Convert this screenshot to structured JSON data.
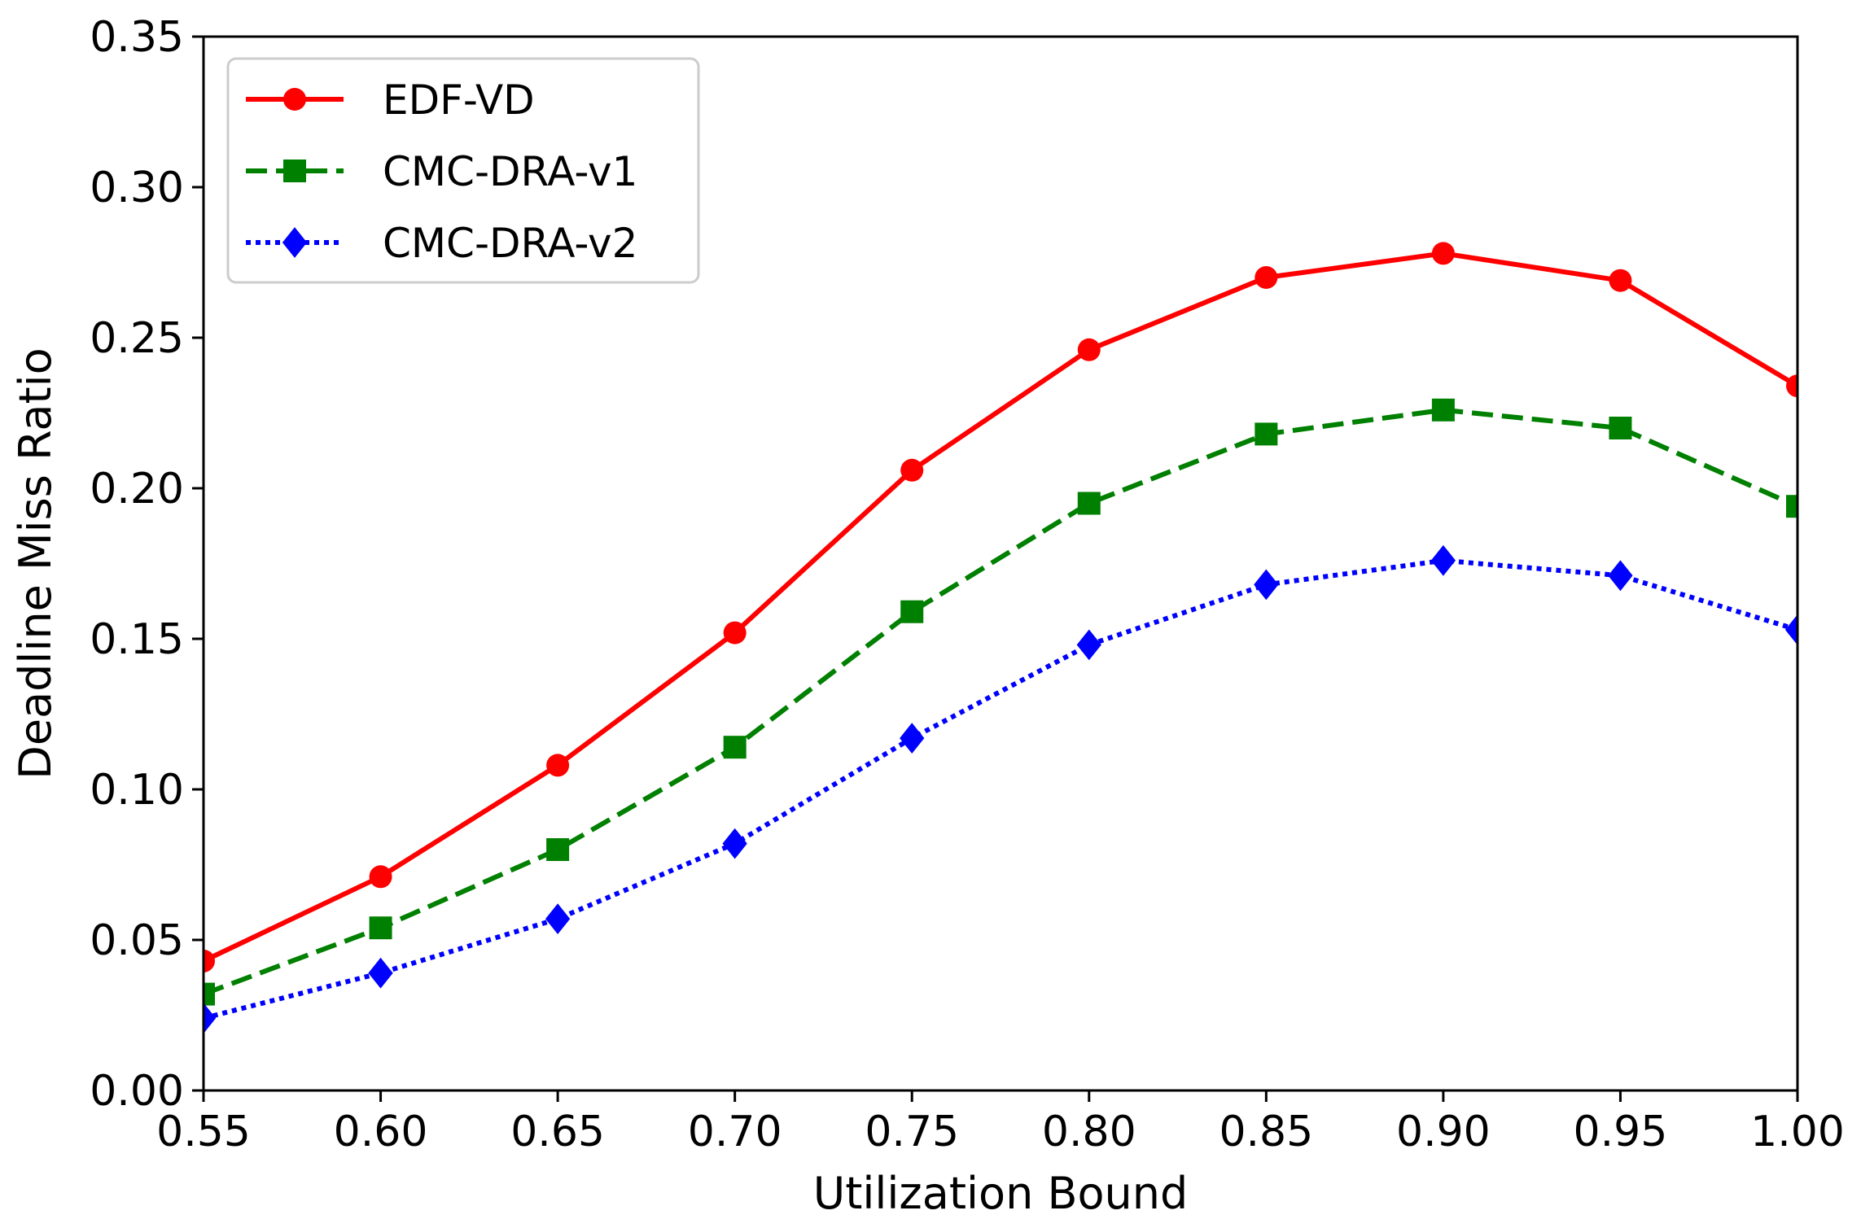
{
  "chart_data": {
    "type": "line",
    "title": "",
    "xlabel": "Utilization Bound",
    "ylabel": "Deadline Miss Ratio",
    "xlim": [
      0.55,
      1.0
    ],
    "ylim": [
      0.0,
      0.35
    ],
    "grid": false,
    "legend_position": "top-left",
    "x": [
      0.55,
      0.6,
      0.65,
      0.7,
      0.75,
      0.8,
      0.85,
      0.9,
      0.95,
      1.0
    ],
    "xticks": [
      "0.55",
      "0.60",
      "0.65",
      "0.70",
      "0.75",
      "0.80",
      "0.85",
      "0.90",
      "0.95",
      "1.00"
    ],
    "yticks": [
      "0.00",
      "0.05",
      "0.10",
      "0.15",
      "0.20",
      "0.25",
      "0.30",
      "0.35"
    ],
    "series": [
      {
        "name": "EDF-VD",
        "color": "#ff0000",
        "marker": "circle",
        "linestyle": "solid",
        "values": [
          0.043,
          0.071,
          0.108,
          0.152,
          0.206,
          0.246,
          0.27,
          0.278,
          0.269,
          0.234
        ]
      },
      {
        "name": "CMC-DRA-v1",
        "color": "#008000",
        "marker": "square",
        "linestyle": "dashed",
        "values": [
          0.032,
          0.054,
          0.08,
          0.114,
          0.159,
          0.195,
          0.218,
          0.226,
          0.22,
          0.194
        ]
      },
      {
        "name": "CMC-DRA-v2",
        "color": "#0000ff",
        "marker": "diamond",
        "linestyle": "dotted",
        "values": [
          0.024,
          0.039,
          0.057,
          0.082,
          0.117,
          0.148,
          0.168,
          0.176,
          0.171,
          0.153
        ]
      }
    ]
  }
}
